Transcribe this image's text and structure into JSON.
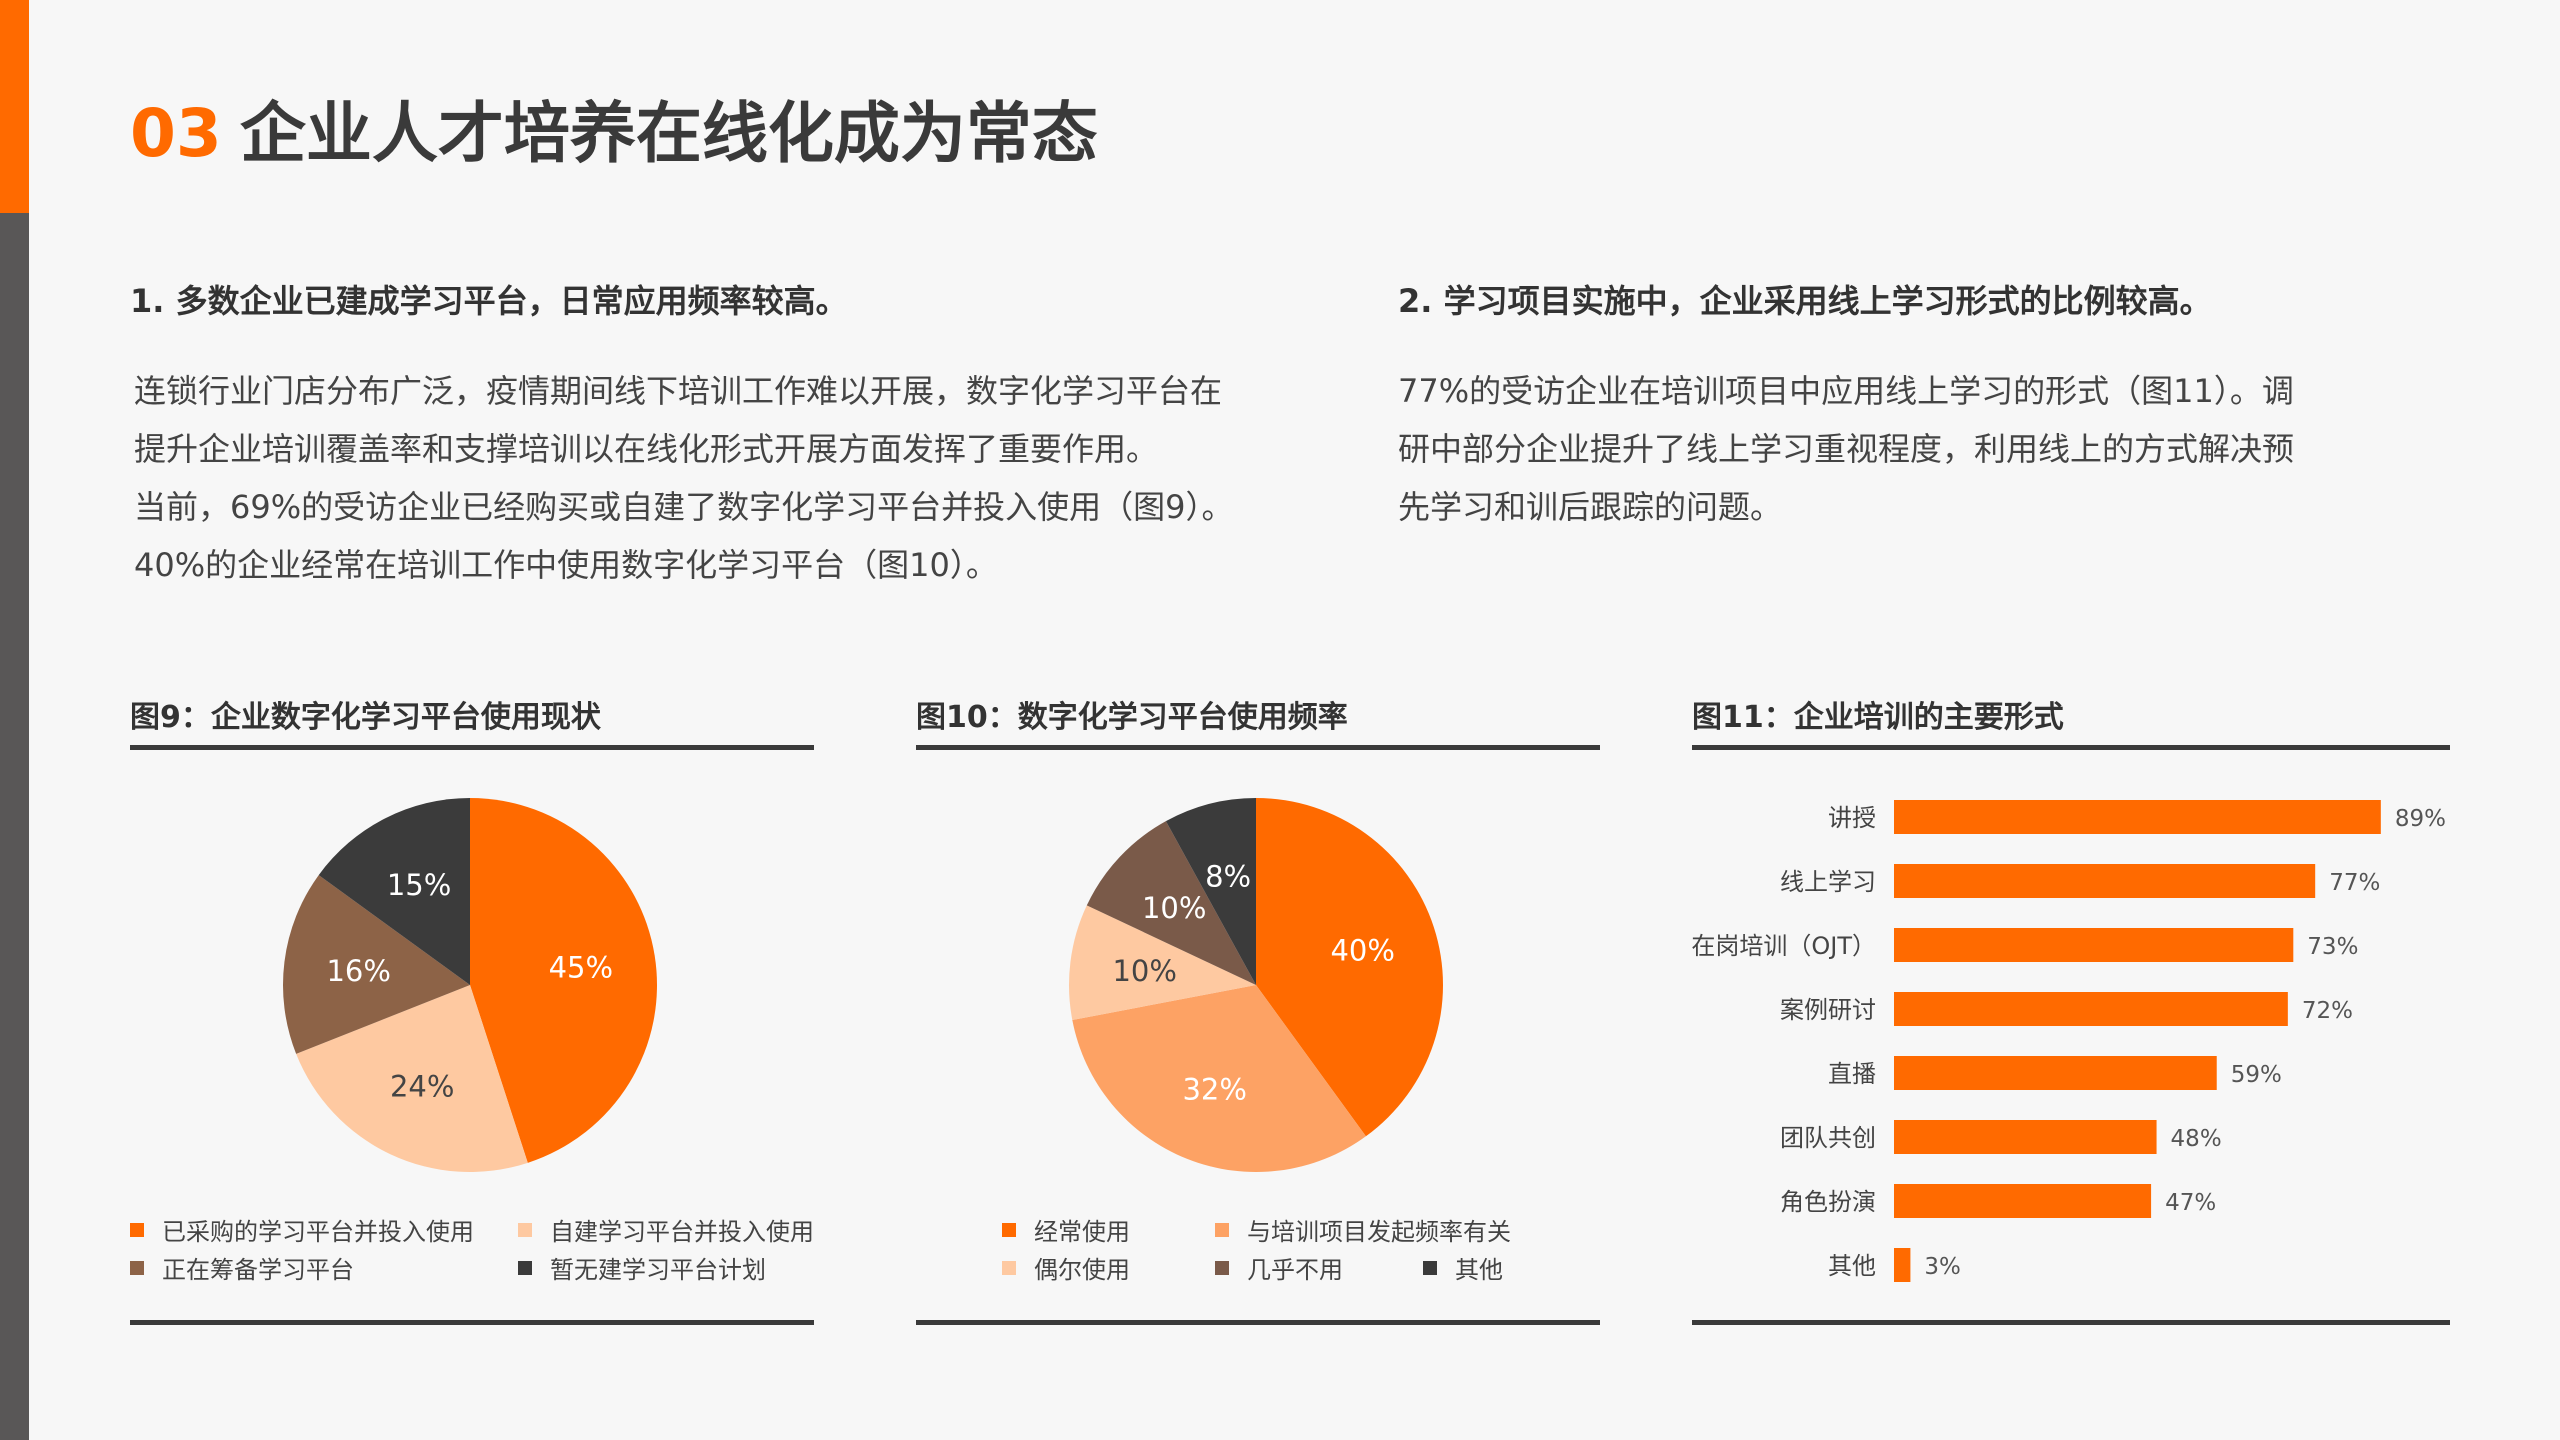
{
  "header": {
    "number": "03",
    "title": "企业人才培养在线化成为常态"
  },
  "sections": [
    {
      "heading": "1. 多数企业已建成学习平台，日常应用频率较高。",
      "lines": [
        "连锁行业门店分布广泛，疫情期间线下培训工作难以开展，数字化学习平台在",
        "提升企业培训覆盖率和支撑培训以在线化形式开展方面发挥了重要作用。",
        "当前，69%的受访企业已经购买或自建了数字化学习平台并投入使用（图9）。",
        "40%的企业经常在培训工作中使用数字化学习平台（图10）。"
      ]
    },
    {
      "heading": "2. 学习项目实施中，企业采用线上学习形式的比例较高。",
      "lines": [
        "77%的受访企业在培训项目中应用线上学习的形式（图11）。调",
        "研中部分企业提升了线上学习重视程度，利用线上的方式解决预",
        "先学习和训后跟踪的问题。"
      ]
    }
  ],
  "colors": {
    "accent": "#ff6a00",
    "orange_light": "#fda264",
    "peach": "#fec9a1",
    "brown": "#8d6347",
    "brown_dark": "#7a5a49",
    "charcoal": "#3b3b3b",
    "text": "#3a3a3a"
  },
  "chart_data": [
    {
      "id": "fig9",
      "type": "pie",
      "title": "图9：企业数字化学习平台使用现状",
      "slices": [
        {
          "label": "已采购的学习平台并投入使用",
          "value": 45,
          "display": "45%",
          "color": "#ff6a00"
        },
        {
          "label": "自建学习平台并投入使用",
          "value": 24,
          "display": "24%",
          "color": "#fec9a1"
        },
        {
          "label": "正在筹备学习平台",
          "value": 16,
          "display": "16%",
          "color": "#8d6347"
        },
        {
          "label": "暂无建学习平台计划",
          "value": 15,
          "display": "15%",
          "color": "#3b3b3b"
        }
      ]
    },
    {
      "id": "fig10",
      "type": "pie",
      "title": "图10：数字化学习平台使用频率",
      "slices": [
        {
          "label": "经常使用",
          "value": 40,
          "display": "40%",
          "color": "#ff6a00"
        },
        {
          "label": "与培训项目发起频率有关",
          "value": 32,
          "display": "32%",
          "color": "#fda264"
        },
        {
          "label": "偶尔使用",
          "value": 10,
          "display": "10%",
          "color": "#fec9a1"
        },
        {
          "label": "几乎不用",
          "value": 10,
          "display": "10%",
          "color": "#7a5a49"
        },
        {
          "label": "其他",
          "value": 8,
          "display": "8%",
          "color": "#3b3b3b"
        }
      ]
    },
    {
      "id": "fig11",
      "type": "bar",
      "orientation": "horizontal",
      "title": "图11：企业培训的主要形式",
      "categories": [
        "讲授",
        "线上学习",
        "在岗培训（OJT）",
        "案例研讨",
        "直播",
        "团队共创",
        "角色扮演",
        "其他"
      ],
      "values": [
        89,
        77,
        73,
        72,
        59,
        48,
        47,
        3
      ],
      "value_labels": [
        "89%",
        "77%",
        "73%",
        "72%",
        "59%",
        "48%",
        "47%",
        "3%"
      ],
      "xlim": [
        0,
        100
      ],
      "color": "#ff6a00"
    }
  ]
}
